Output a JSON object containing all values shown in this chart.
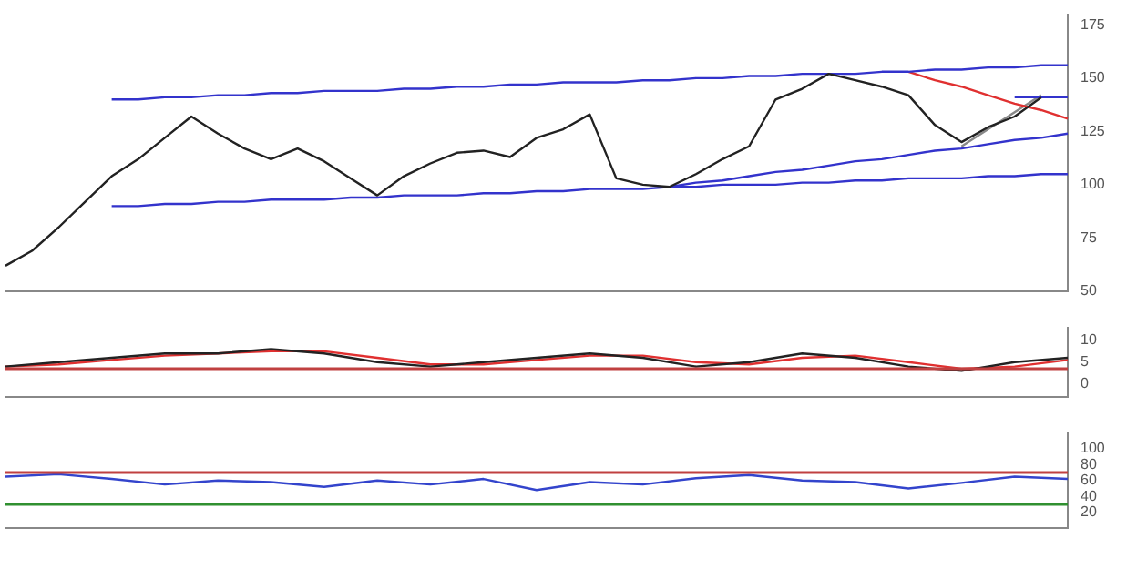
{
  "chart_data": [
    {
      "type": "line",
      "categories": [
        null,
        null,
        null,
        null,
        null,
        null,
        null,
        null,
        null,
        null,
        null,
        null,
        null,
        null,
        null,
        null,
        null,
        null,
        null,
        null,
        null,
        null,
        null,
        null,
        null,
        null,
        null,
        null,
        null,
        null,
        null,
        null,
        null,
        null,
        null,
        null,
        null,
        null,
        null,
        null,
        null
      ],
      "ylim": [
        50,
        180
      ],
      "yticks": [
        50,
        75,
        100,
        125,
        150,
        175
      ],
      "grid": false,
      "legend": false,
      "marker": "none",
      "series": [
        {
          "color": "#222222",
          "values": [
            62,
            69,
            80,
            92,
            104,
            112,
            122,
            132,
            124,
            117,
            112,
            117,
            111,
            103,
            95,
            104,
            110,
            115,
            116,
            113,
            122,
            126,
            133,
            103,
            100,
            99,
            105,
            112,
            118,
            140,
            145,
            152,
            149,
            146,
            142,
            128,
            120,
            127,
            132,
            141,
            null
          ]
        },
        {
          "color": "#3333cc",
          "values": [
            null,
            null,
            null,
            null,
            140,
            140,
            141,
            141,
            142,
            142,
            143,
            143,
            144,
            144,
            144,
            145,
            145,
            146,
            146,
            147,
            147,
            148,
            148,
            148,
            149,
            149,
            150,
            150,
            151,
            151,
            152,
            152,
            152,
            153,
            153,
            154,
            154,
            155,
            155,
            156,
            156
          ]
        },
        {
          "color": "#3333cc",
          "values": [
            null,
            null,
            null,
            null,
            90,
            90,
            91,
            91,
            92,
            92,
            93,
            93,
            93,
            94,
            94,
            95,
            95,
            95,
            96,
            96,
            97,
            97,
            98,
            98,
            98,
            99,
            99,
            100,
            100,
            100,
            101,
            101,
            102,
            102,
            103,
            103,
            103,
            104,
            104,
            105,
            105
          ]
        },
        {
          "color": "#3333cc",
          "values": [
            null,
            null,
            null,
            null,
            null,
            null,
            null,
            null,
            null,
            null,
            null,
            null,
            null,
            null,
            null,
            null,
            null,
            null,
            null,
            null,
            null,
            null,
            null,
            null,
            null,
            99,
            101,
            102,
            104,
            106,
            107,
            109,
            111,
            112,
            114,
            116,
            117,
            119,
            121,
            122,
            124
          ]
        },
        {
          "color": "#3333cc",
          "values": [
            null,
            null,
            null,
            null,
            null,
            null,
            null,
            null,
            null,
            null,
            null,
            null,
            null,
            null,
            null,
            null,
            null,
            null,
            null,
            null,
            null,
            null,
            null,
            null,
            null,
            null,
            null,
            null,
            null,
            null,
            null,
            null,
            null,
            null,
            null,
            null,
            null,
            null,
            141,
            141,
            141
          ]
        },
        {
          "color": "#e03030",
          "values": [
            null,
            null,
            null,
            null,
            null,
            null,
            null,
            null,
            null,
            null,
            null,
            null,
            null,
            null,
            null,
            null,
            null,
            null,
            null,
            null,
            null,
            null,
            null,
            null,
            null,
            null,
            null,
            null,
            null,
            null,
            null,
            null,
            null,
            null,
            153,
            149,
            146,
            142,
            138,
            135,
            131
          ]
        },
        {
          "color": "#888888",
          "values": [
            null,
            null,
            null,
            null,
            null,
            null,
            null,
            null,
            null,
            null,
            null,
            null,
            null,
            null,
            null,
            null,
            null,
            null,
            null,
            null,
            null,
            null,
            null,
            null,
            null,
            null,
            null,
            null,
            null,
            null,
            null,
            null,
            null,
            null,
            null,
            null,
            118,
            126,
            134,
            142,
            null
          ]
        }
      ]
    },
    {
      "type": "line",
      "categories": [
        null,
        null,
        null,
        null,
        null,
        null,
        null,
        null,
        null,
        null,
        null,
        null,
        null,
        null,
        null,
        null,
        null,
        null,
        null,
        null,
        null
      ],
      "ylim": [
        -3,
        13
      ],
      "yticks": [
        0,
        5,
        10
      ],
      "grid": false,
      "legend": false,
      "marker": "none",
      "ref_lines": [
        {
          "axis": "y",
          "value": 3.5,
          "color": "#c04040"
        }
      ],
      "series": [
        {
          "color": "#222222",
          "values": [
            4,
            5,
            6,
            7,
            7,
            8,
            7,
            5,
            4,
            5,
            6,
            7,
            6,
            4,
            5,
            7,
            6,
            4,
            3,
            5,
            6
          ]
        },
        {
          "color": "#e03030",
          "values": [
            4,
            4.5,
            5.5,
            6.5,
            7,
            7.5,
            7.5,
            6,
            4.5,
            4.5,
            5.5,
            6.5,
            6.5,
            5,
            4.5,
            6,
            6.5,
            5,
            3.5,
            4,
            5.5
          ]
        }
      ]
    },
    {
      "type": "line",
      "categories": [
        null,
        null,
        null,
        null,
        null,
        null,
        null,
        null,
        null,
        null,
        null,
        null,
        null,
        null,
        null,
        null,
        null,
        null,
        null,
        null,
        null
      ],
      "ylim": [
        0,
        120
      ],
      "yticks": [
        20,
        40,
        60,
        80,
        100
      ],
      "grid": false,
      "legend": false,
      "marker": "none",
      "ref_lines": [
        {
          "axis": "y",
          "value": 70,
          "color": "#c04040"
        },
        {
          "axis": "y",
          "value": 30,
          "color": "#309030"
        }
      ],
      "series": [
        {
          "color": "#3344cc",
          "values": [
            65,
            68,
            62,
            55,
            60,
            58,
            52,
            60,
            55,
            62,
            48,
            58,
            55,
            63,
            67,
            60,
            58,
            50,
            57,
            65,
            62
          ]
        }
      ]
    }
  ]
}
